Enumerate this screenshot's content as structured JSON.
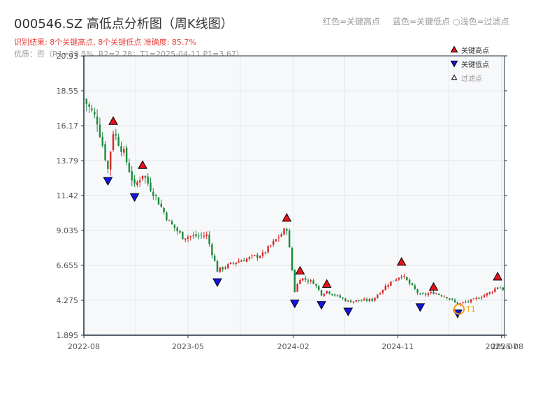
{
  "title": "000546.SZ 高低点分析图（周K线图）",
  "subtitle": "识别结果: 8个关键高点, 8个关键低点  准确度: 85.7%",
  "quality": "优质：否（R1=28.5%, R2=2.78；T1=2025-04-11 P1=3.67）",
  "top_legend": [
    "红色=关键高点",
    "蓝色=关键低点",
    "○浅色=过滤点"
  ],
  "legend": [
    "关键高点",
    "关键低点",
    "过滤点"
  ],
  "colors": {
    "up": "#d62728",
    "down": "#1a8a3a",
    "high_marker": "#e8121b",
    "low_marker": "#1414e6",
    "t1_marker": "#f39c12",
    "axis": "#1f2d3d",
    "grid": "#e3e6ea",
    "plot_bg": "#f7f8fa"
  },
  "chart_data": {
    "type": "candlestick",
    "xlabel": "",
    "ylabel": "",
    "ylim": [
      1.895,
      20.93
    ],
    "yticks": [
      "1.895",
      "4.275",
      "6.655",
      "9.035",
      "11.42",
      "13.79",
      "16.17",
      "18.55",
      "20.93"
    ],
    "xticks": [
      "2022-08",
      "2023-05",
      "2024-02",
      "2024-11",
      "2025-07",
      "2025-08"
    ],
    "x_range": [
      "2022-08-01",
      "2025-08-08"
    ],
    "grid": true,
    "legend_position": "top-right",
    "key_highs": [
      {
        "date": "2022-10-17",
        "value": 16.2
      },
      {
        "date": "2023-01-02",
        "value": 13.2
      },
      {
        "date": "2024-01-15",
        "value": 9.6
      },
      {
        "date": "2024-02-19",
        "value": 6.0
      },
      {
        "date": "2024-04-29",
        "value": 5.1
      },
      {
        "date": "2024-11-11",
        "value": 6.6
      },
      {
        "date": "2025-02-03",
        "value": 4.9
      },
      {
        "date": "2025-07-21",
        "value": 5.6
      }
    ],
    "key_lows": [
      {
        "date": "2022-10-03",
        "value": 12.7
      },
      {
        "date": "2022-12-12",
        "value": 11.6
      },
      {
        "date": "2023-07-17",
        "value": 5.8
      },
      {
        "date": "2024-02-05",
        "value": 4.35
      },
      {
        "date": "2024-04-15",
        "value": 4.25
      },
      {
        "date": "2024-06-24",
        "value": 3.8
      },
      {
        "date": "2024-12-30",
        "value": 4.1
      },
      {
        "date": "2025-04-07",
        "value": 3.67
      }
    ],
    "t1": {
      "label": "T1",
      "date": "2025-04-11",
      "value": 3.67
    },
    "close_path": [
      {
        "date": "2022-08-01",
        "value": 18.0
      },
      {
        "date": "2022-09-05",
        "value": 16.5
      },
      {
        "date": "2022-10-03",
        "value": 13.2
      },
      {
        "date": "2022-10-17",
        "value": 15.8
      },
      {
        "date": "2022-11-14",
        "value": 14.3
      },
      {
        "date": "2022-12-12",
        "value": 12.0
      },
      {
        "date": "2023-01-02",
        "value": 12.9
      },
      {
        "date": "2023-02-06",
        "value": 11.3
      },
      {
        "date": "2023-03-13",
        "value": 9.6
      },
      {
        "date": "2023-04-17",
        "value": 8.6
      },
      {
        "date": "2023-06-19",
        "value": 8.7
      },
      {
        "date": "2023-07-17",
        "value": 6.3
      },
      {
        "date": "2023-09-04",
        "value": 6.9
      },
      {
        "date": "2023-11-13",
        "value": 7.4
      },
      {
        "date": "2024-01-15",
        "value": 9.2
      },
      {
        "date": "2024-02-05",
        "value": 4.9
      },
      {
        "date": "2024-02-19",
        "value": 5.8
      },
      {
        "date": "2024-03-25",
        "value": 5.5
      },
      {
        "date": "2024-04-15",
        "value": 4.7
      },
      {
        "date": "2024-04-29",
        "value": 4.9
      },
      {
        "date": "2024-06-24",
        "value": 4.2
      },
      {
        "date": "2024-08-26",
        "value": 4.3
      },
      {
        "date": "2024-10-07",
        "value": 5.4
      },
      {
        "date": "2024-11-11",
        "value": 6.0
      },
      {
        "date": "2024-12-30",
        "value": 4.6
      },
      {
        "date": "2025-02-03",
        "value": 4.8
      },
      {
        "date": "2025-03-10",
        "value": 4.5
      },
      {
        "date": "2025-04-07",
        "value": 4.0
      },
      {
        "date": "2025-05-19",
        "value": 4.3
      },
      {
        "date": "2025-06-30",
        "value": 4.8
      },
      {
        "date": "2025-07-21",
        "value": 5.2
      },
      {
        "date": "2025-08-08",
        "value": 5.0
      }
    ]
  }
}
